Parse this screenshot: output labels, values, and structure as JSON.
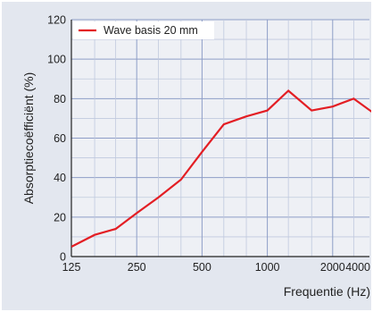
{
  "chart_data": {
    "type": "line",
    "xlabel": "Frequentie (Hz)",
    "ylabel": "Absorptiecoëfficiënt (%)",
    "x_scale": "log",
    "x_tick_labels": [
      "125",
      "250",
      "500",
      "1000",
      "2000",
      "4000"
    ],
    "x_ticks": [
      125,
      250,
      500,
      1000,
      2000,
      4000
    ],
    "y_ticks": [
      0,
      20,
      40,
      60,
      80,
      100,
      120
    ],
    "ylim": [
      0,
      120
    ],
    "xlim": [
      125,
      4000
    ],
    "grid": true,
    "legend_position": "top-left",
    "series": [
      {
        "name": "Wave basis 20 mm",
        "color": "#e31e24",
        "x": [
          125,
          160,
          200,
          250,
          315,
          400,
          500,
          630,
          800,
          1000,
          1250,
          1600,
          2000,
          2500,
          3150,
          4000
        ],
        "values": [
          5,
          11,
          14,
          22,
          30,
          39,
          53,
          67,
          71,
          74,
          84,
          74,
          76,
          80,
          72,
          73
        ]
      }
    ]
  },
  "colors": {
    "background": "#ffffff",
    "plot_background": "#eef0f5",
    "outer_panel": "#e3e7ef",
    "grid_major": "#8e9ec7",
    "grid_minor": "#c0c9de",
    "axis": "#222222"
  }
}
